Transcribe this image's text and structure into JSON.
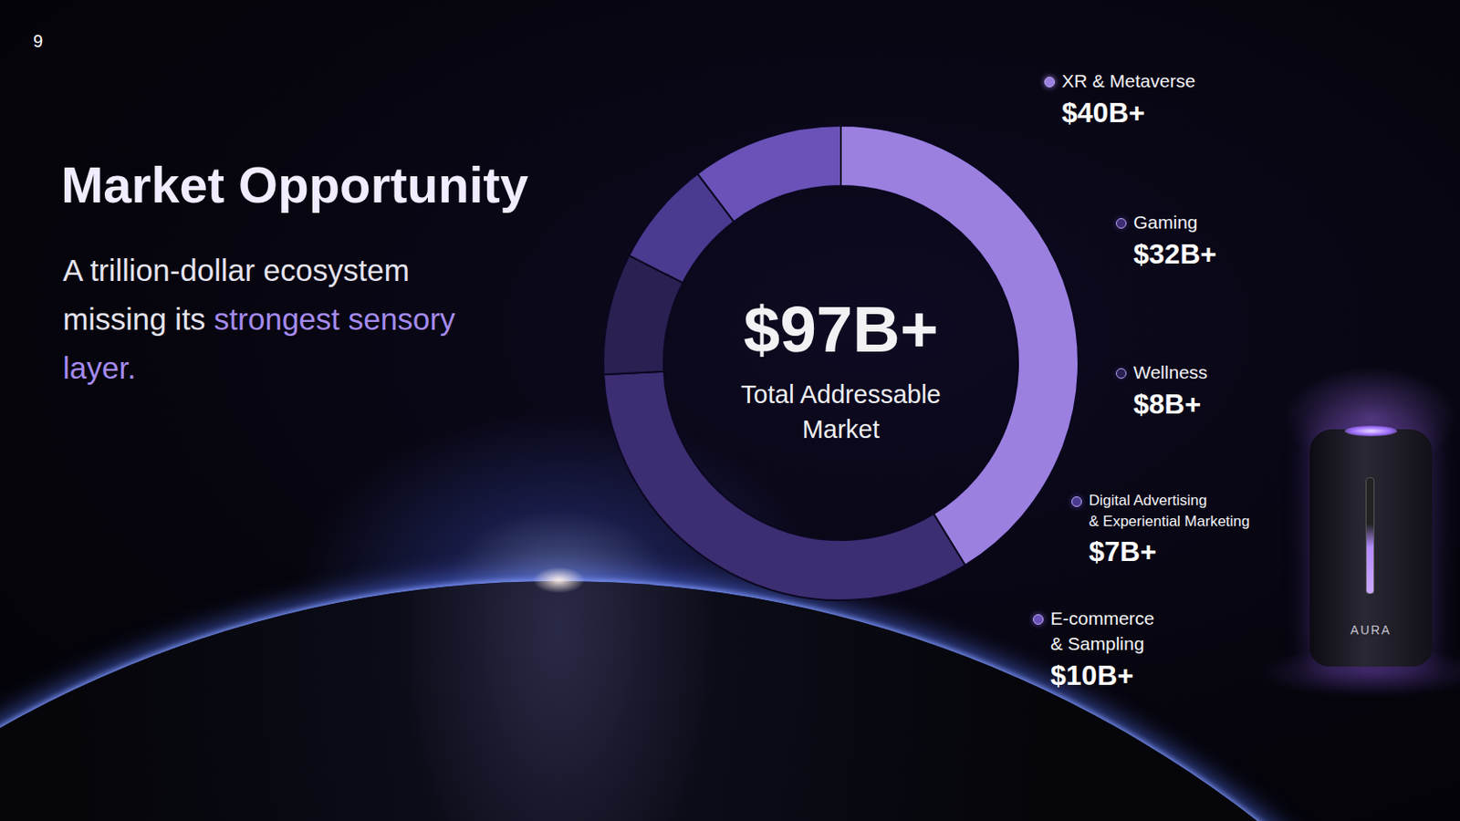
{
  "chart_data": {
    "type": "pie",
    "page": 9,
    "title": "Market Opportunity",
    "subtitle": "A trillion-dollar ecosystem missing its strongest sensory layer.",
    "subtitle_highlight": "strongest sensory layer.",
    "categories": [
      "XR & Metaverse",
      "Gaming",
      "Wellness",
      "Digital Advertising & Experiential Marketing",
      "E-commerce & Sampling"
    ],
    "values": [
      40,
      32,
      8,
      7,
      10
    ],
    "value_labels": [
      "$40B+",
      "$32B+",
      "$8B+",
      "$7B+",
      "$10B+"
    ],
    "colors": [
      "#9b80e0",
      "#3d2d72",
      "#2a2052",
      "#4b3a8f",
      "#6a52b8"
    ],
    "total": 97,
    "total_label": "$97B+",
    "center_text": "Total Addressable Market",
    "product_label": "AURA",
    "legend": "right"
  }
}
